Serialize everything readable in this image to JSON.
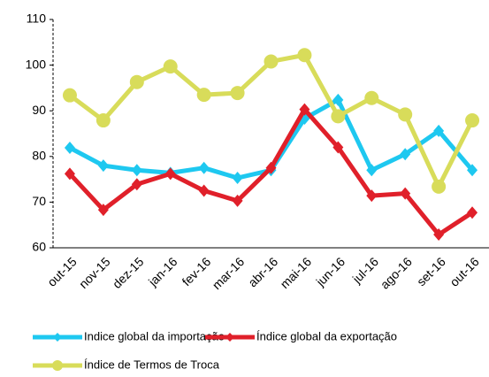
{
  "chart_data": {
    "type": "line",
    "categories": [
      "out-15",
      "nov-15",
      "dez-15",
      "jan-16",
      "fev-16",
      "mar-16",
      "abr-16",
      "mai-16",
      "jun-16",
      "jul-16",
      "ago-16",
      "set-16",
      "out-16"
    ],
    "series": [
      {
        "name": "Indice global da importação",
        "color": "#1ec8f0",
        "marker": "diamond",
        "values": [
          81.9,
          78,
          77,
          76.4,
          77.5,
          75.3,
          77,
          88.3,
          92.4,
          77,
          80.5,
          85.6,
          77
        ]
      },
      {
        "name": "Índice global da exportação",
        "color": "#e0202a",
        "marker": "diamond",
        "values": [
          76.2,
          68.3,
          73.9,
          76.2,
          72.5,
          70.3,
          77.5,
          90.3,
          82,
          71.4,
          71.9,
          62.9,
          67.7
        ]
      },
      {
        "name": "Índice de Termos de Troca",
        "color": "#d8dc5a",
        "marker": "circle",
        "values": [
          93.4,
          87.9,
          96.3,
          99.7,
          93.5,
          93.9,
          100.8,
          102.2,
          88.8,
          92.8,
          89.2,
          73.4,
          87.9
        ]
      }
    ],
    "ylim": [
      60,
      110
    ],
    "yticks": [
      60,
      70,
      80,
      90,
      100,
      110
    ],
    "grid": false
  }
}
